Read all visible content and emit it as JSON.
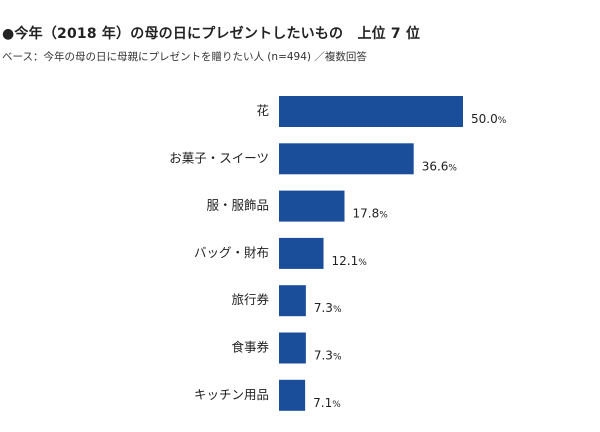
{
  "title": "●今年（2018 年）の母の日にプレゼントしたいもの　上位 7 位",
  "subtitle": "ベース：今年の母の日に母親にプレゼントを贈りたい人 (n=494) ／複数回答",
  "chart_data": {
    "type": "bar",
    "orientation": "horizontal",
    "categories": [
      "花",
      "お菓子・スイーツ",
      "服・服飾品",
      "バッグ・財布",
      "旅行券",
      "食事券",
      "キッチン用品"
    ],
    "values": [
      50.0,
      36.6,
      17.8,
      12.1,
      7.3,
      7.3,
      7.1
    ],
    "value_labels": [
      "50.0",
      "36.6",
      "17.8",
      "12.1",
      "7.3",
      "7.3",
      "7.1"
    ],
    "unit": "%",
    "bar_color": "#1a4e9a",
    "grid": false,
    "legend": "none"
  }
}
